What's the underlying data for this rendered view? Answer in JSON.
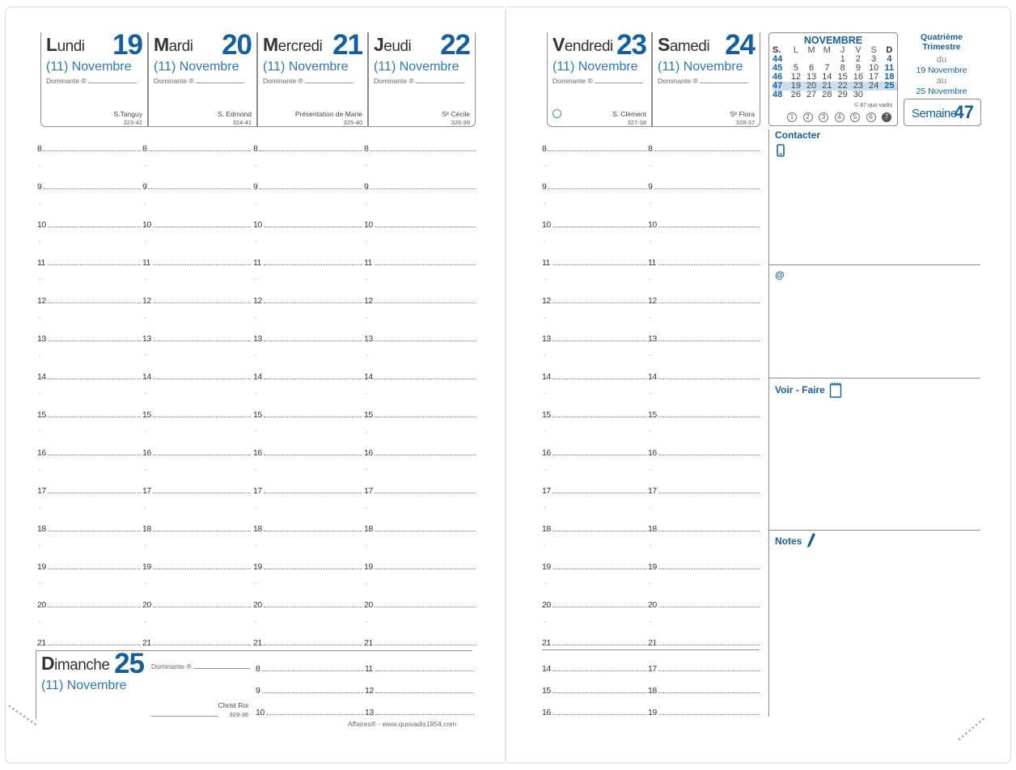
{
  "days_left": [
    {
      "name_cap": "L",
      "name_rest": "undi",
      "num": "19",
      "month": "(11) Novembre",
      "dominante": "Dominante ®",
      "saint": "S.Tanguy",
      "code": "323-42"
    },
    {
      "name_cap": "M",
      "name_rest": "ardi",
      "num": "20",
      "month": "(11) Novembre",
      "dominante": "Dominante ®",
      "saint": "S. Edmond",
      "code": "324-41"
    },
    {
      "name_cap": "M",
      "name_rest": "ercredi",
      "num": "21",
      "month": "(11) Novembre",
      "dominante": "Dominante ®",
      "saint": "Présentation de Marie",
      "code": "325-40"
    },
    {
      "name_cap": "J",
      "name_rest": "eudi",
      "num": "22",
      "month": "(11) Novembre",
      "dominante": "Dominante ®",
      "saint": "Sᵉ Cécile",
      "code": "326-39"
    }
  ],
  "days_right": [
    {
      "name_cap": "V",
      "name_rest": "endredi",
      "num": "23",
      "month": "(11) Novembre",
      "dominante": "Dominante ®",
      "saint": "S. Clément",
      "code": "327-38"
    },
    {
      "name_cap": "S",
      "name_rest": "amedi",
      "num": "24",
      "month": "(11) Novembre",
      "dominante": "Dominante ®",
      "saint": "Sᵉ Flora",
      "code": "328-37"
    }
  ],
  "hours": [
    "8",
    "9",
    "10",
    "11",
    "12",
    "13",
    "14",
    "15",
    "16",
    "17",
    "18",
    "19",
    "20",
    "21"
  ],
  "sunday": {
    "name_cap": "D",
    "name_rest": "imanche",
    "num": "25",
    "month": "(11) Novembre",
    "dominante": "Dominante ®",
    "saint": "Christ Roi",
    "code": "329-36",
    "hours_a": [
      "8",
      "9",
      "10"
    ],
    "hours_b": [
      "11",
      "12",
      "13"
    ]
  },
  "saturday_extra": {
    "hours_a": [
      "14",
      "15",
      "16"
    ],
    "hours_b": [
      "17",
      "18",
      "19"
    ]
  },
  "footer": "Affaires® - www.quovadis1954.com",
  "mini_calendar": {
    "title": "NOVEMBRE",
    "header": [
      "S.",
      "L",
      "M",
      "M",
      "J",
      "V",
      "S",
      "D"
    ],
    "rows": [
      [
        "44",
        "",
        "",
        "",
        "1",
        "2",
        "3",
        "4"
      ],
      [
        "45",
        "5",
        "6",
        "7",
        "8",
        "9",
        "10",
        "11"
      ],
      [
        "46",
        "12",
        "13",
        "14",
        "15",
        "16",
        "17",
        "18"
      ],
      [
        "47",
        "19",
        "20",
        "21",
        "22",
        "23",
        "24",
        "25"
      ],
      [
        "48",
        "26",
        "27",
        "28",
        "29",
        "30",
        "",
        ""
      ]
    ],
    "highlight_row": 3,
    "copyright": "© 87 quo vadis",
    "circles": [
      "1",
      "2",
      "3",
      "4",
      "5",
      "6",
      "7"
    ]
  },
  "quarter": "Quatrième Trimestre",
  "range": {
    "du": "du",
    "from": "19 Novembre",
    "au": "au",
    "to": "25 Novembre"
  },
  "week": {
    "label": "Semaine",
    "num": "47"
  },
  "sections": {
    "contacter": "Contacter",
    "at": "@",
    "voir_faire": "Voir - Faire",
    "notes": "Notes"
  },
  "colors": {
    "accent": "#14609e",
    "accent_light": "#2f78b5",
    "highlight": "#c9dff1"
  }
}
